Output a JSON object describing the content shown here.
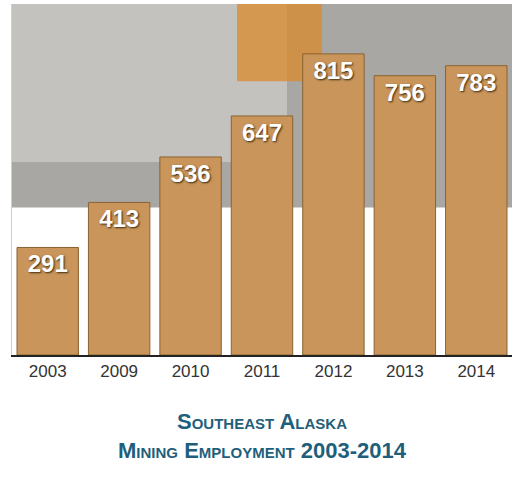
{
  "chart_data": {
    "type": "bar",
    "title": "Southeast Alaska Mining Employment 2003-2014",
    "categories": [
      "2003",
      "2009",
      "2010",
      "2011",
      "2012",
      "2013",
      "2014"
    ],
    "values": [
      291,
      413,
      536,
      647,
      815,
      756,
      783
    ],
    "color": "#c9955a",
    "ylim": [
      0,
      950
    ],
    "grid": false,
    "data_labels": true,
    "tick_labels": "x"
  }
}
